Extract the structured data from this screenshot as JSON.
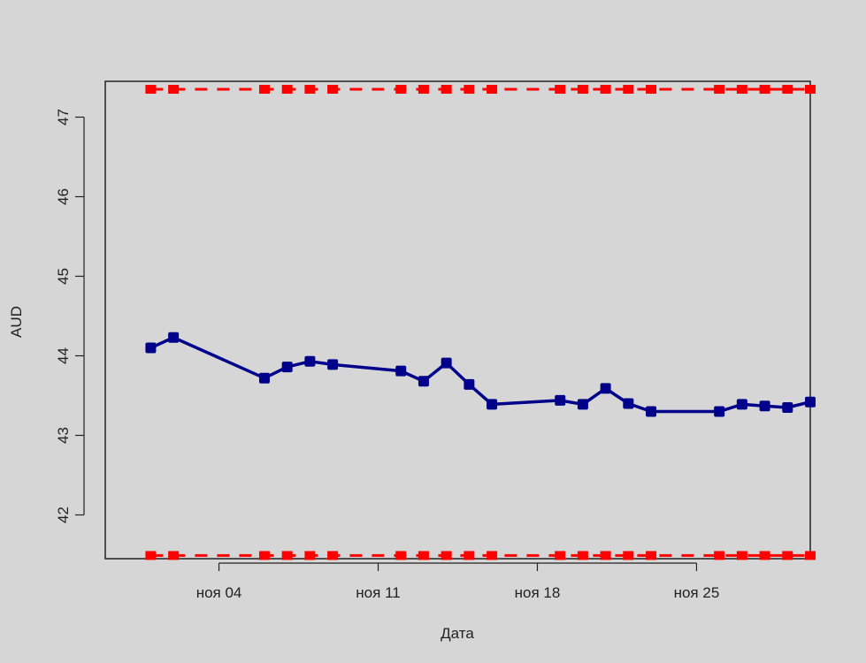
{
  "chart_data": {
    "type": "line",
    "xlabel": "Дата",
    "ylabel": "AUD",
    "ylim": [
      41.45,
      47.45
    ],
    "xlim": [
      "2025-10-30",
      "2025-11-30"
    ],
    "y_ticks": [
      42,
      43,
      44,
      45,
      46,
      47
    ],
    "x_ticks": [
      {
        "label": "ноя 04",
        "date": "2025-11-04"
      },
      {
        "label": "ноя 11",
        "date": "2025-11-11"
      },
      {
        "label": "ноя 18",
        "date": "2025-11-18"
      },
      {
        "label": "ноя 25",
        "date": "2025-11-25"
      }
    ],
    "dates": [
      "2025-11-01",
      "2025-11-02",
      "2025-11-06",
      "2025-11-07",
      "2025-11-08",
      "2025-11-09",
      "2025-11-12",
      "2025-11-13",
      "2025-11-14",
      "2025-11-15",
      "2025-11-16",
      "2025-11-19",
      "2025-11-20",
      "2025-11-21",
      "2025-11-22",
      "2025-11-23",
      "2025-11-26",
      "2025-11-27",
      "2025-11-28",
      "2025-11-29",
      "2025-11-30"
    ],
    "series": [
      {
        "role": "main",
        "color": "#00008b",
        "values": [
          44.1,
          44.23,
          43.72,
          43.86,
          43.93,
          43.89,
          43.81,
          43.68,
          43.91,
          43.64,
          43.39,
          43.44,
          43.39,
          43.59,
          43.4,
          43.3,
          43.3,
          43.39,
          43.37,
          43.35,
          43.42
        ]
      },
      {
        "role": "upper-bound",
        "color": "#ff0000",
        "style": "dashed",
        "value": 47.35
      },
      {
        "role": "lower-bound",
        "color": "#ff0000",
        "style": "dashed",
        "value": 41.49
      }
    ]
  }
}
